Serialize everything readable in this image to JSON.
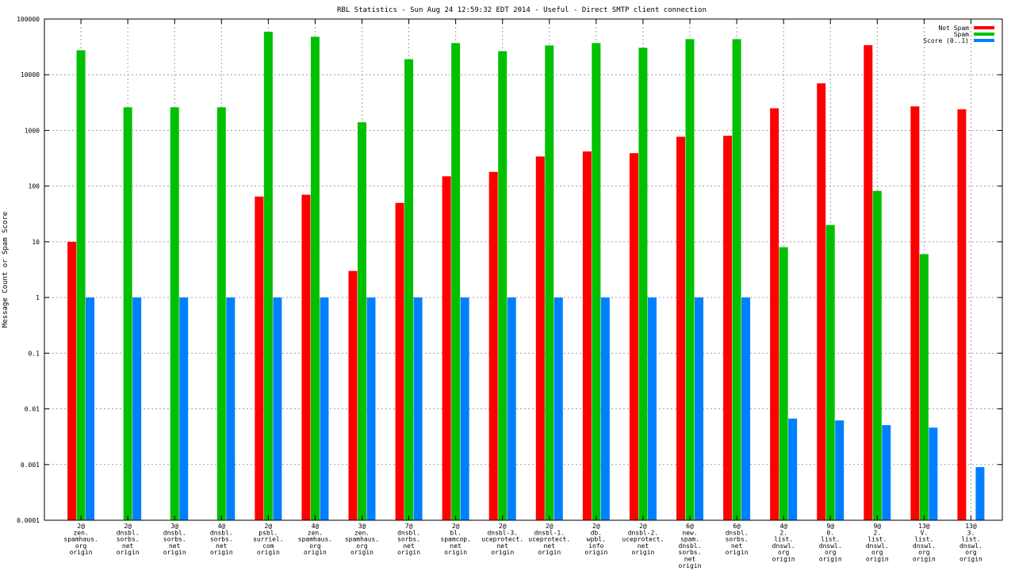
{
  "chart_data": {
    "type": "bar",
    "title": "RBL Statistics - Sun Aug 24 12:59:32 EDT 2014 - Useful - Direct SMTP client connection",
    "ylabel": "Message Count or Spam Score",
    "xlabel": "",
    "yscale": "log",
    "ylim": [
      0.0001,
      100000
    ],
    "yticks": [
      "0.0001",
      "0.001",
      "0.01",
      "0.1",
      "1",
      "10",
      "100",
      "1000",
      "10000",
      "100000"
    ],
    "grid": true,
    "legend_position": "top-right",
    "categories": [
      [
        "2@",
        "zen.",
        "spamhaus.",
        "org",
        "origin"
      ],
      [
        "2@",
        "dnsbl.",
        "sorbs.",
        "net",
        "origin"
      ],
      [
        "3@",
        "dnsbl.",
        "sorbs.",
        "net",
        "origin"
      ],
      [
        "4@",
        "dnsbl.",
        "sorbs.",
        "net",
        "origin"
      ],
      [
        "2@",
        "psbl.",
        "surriel.",
        "com",
        "origin"
      ],
      [
        "4@",
        "zen.",
        "spamhaus.",
        "org",
        "origin"
      ],
      [
        "3@",
        "zen.",
        "spamhaus.",
        "org",
        "origin"
      ],
      [
        "7@",
        "dnsbl.",
        "sorbs.",
        "net",
        "origin"
      ],
      [
        "2@",
        "bl.",
        "spamcop.",
        "net",
        "origin"
      ],
      [
        "2@",
        "dnsbl-3.",
        "uceprotect.",
        "net",
        "origin"
      ],
      [
        "2@",
        "dnsbl-1.",
        "uceprotect.",
        "net",
        "origin"
      ],
      [
        "2@",
        "db.",
        "wpbl.",
        "info",
        "origin"
      ],
      [
        "2@",
        "dnsbl-2.",
        "uceprotect.",
        "net",
        "origin"
      ],
      [
        "6@",
        "new.",
        "spam.",
        "dnsbl.",
        "sorbs.",
        "net",
        "origin"
      ],
      [
        "6@",
        "dnsbl.",
        "sorbs.",
        "net",
        "origin"
      ],
      [
        "4@",
        "2.",
        "list.",
        "dnswl.",
        "org",
        "origin"
      ],
      [
        "9@",
        "0.",
        "list.",
        "dnswl.",
        "org",
        "origin"
      ],
      [
        "9@",
        "2.",
        "list.",
        "dnswl.",
        "org",
        "origin"
      ],
      [
        "13@",
        "V.",
        "list.",
        "dnswl.",
        "org",
        "origin"
      ],
      [
        "13@",
        "3.",
        "list.",
        "dnswl.",
        "org",
        "origin"
      ]
    ],
    "series": [
      {
        "name": "Not Spam",
        "color": "#ff0000",
        "values": [
          10,
          null,
          null,
          null,
          65,
          70,
          3,
          50,
          150,
          180,
          340,
          420,
          390,
          770,
          800,
          2500,
          7000,
          34000,
          2700,
          2400
        ]
      },
      {
        "name": "Spam",
        "color": "#00c000",
        "values": [
          27500,
          2600,
          2600,
          2600,
          59000,
          48000,
          1400,
          19000,
          37000,
          26500,
          33500,
          37000,
          30500,
          43500,
          43500,
          8,
          20,
          82,
          6,
          null
        ]
      },
      {
        "name": "Score (0..1)",
        "color": "#0080ff",
        "values": [
          1,
          1,
          1,
          1,
          1,
          1,
          1,
          1,
          1,
          1,
          1,
          1,
          1,
          1,
          1,
          0.0067,
          0.0062,
          0.0051,
          0.0046,
          0.0009
        ]
      }
    ]
  }
}
